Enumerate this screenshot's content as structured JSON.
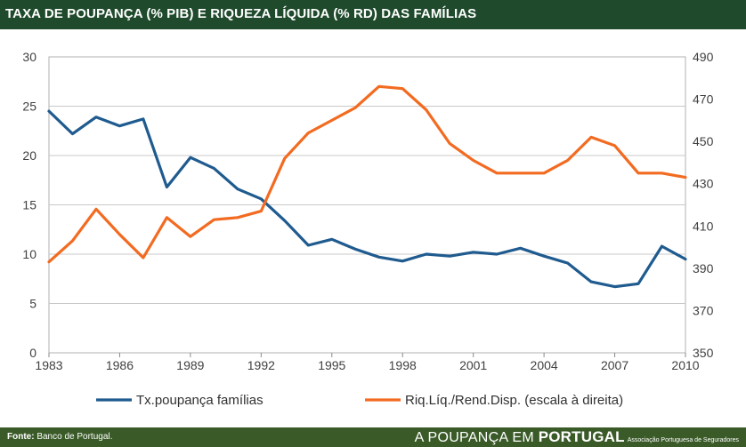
{
  "header": {
    "title": "TAXA DE POUPANÇA (% PIB) E RIQUEZA LÍQUIDA (% RD) DAS FAMÍLIAS"
  },
  "footer": {
    "source_label": "Fonte:",
    "source_text": "Banco de Portugal.",
    "brand_part1": "A POUPANÇA EM ",
    "brand_part2": "PORTUGAL",
    "brand_association": "Associação Portuguesa de Seguradores"
  },
  "colors": {
    "header_bg": "#1f4a2c",
    "footer_bg": "#3a5a28",
    "series_savings": "#1f5b8f",
    "series_wealth": "#f26b21"
  },
  "chart_data": {
    "type": "line",
    "title": "",
    "x": [
      1983,
      1984,
      1985,
      1986,
      1987,
      1988,
      1989,
      1990,
      1991,
      1992,
      1993,
      1994,
      1995,
      1996,
      1997,
      1998,
      1999,
      2000,
      2001,
      2002,
      2003,
      2004,
      2005,
      2006,
      2007,
      2008,
      2009,
      2010
    ],
    "xticks": [
      "1983",
      "1986",
      "1989",
      "1992",
      "1995",
      "1998",
      "2001",
      "2004",
      "2007",
      "2010"
    ],
    "xlim": [
      1983,
      2010
    ],
    "ylim_left": [
      0,
      30
    ],
    "yticks_left": [
      "0",
      "5",
      "10",
      "15",
      "20",
      "25",
      "30"
    ],
    "ylim_right": [
      350,
      490
    ],
    "yticks_right": [
      "350",
      "370",
      "390",
      "410",
      "430",
      "450",
      "470",
      "490"
    ],
    "grid": true,
    "legend": "bottom",
    "series": [
      {
        "name": "Tx.poupança famílias",
        "axis": "left",
        "color": "#1f5b8f",
        "values": [
          24.5,
          22.2,
          23.9,
          23.0,
          23.7,
          16.8,
          19.8,
          18.7,
          16.6,
          15.6,
          13.4,
          10.9,
          11.5,
          10.5,
          9.7,
          9.3,
          10.0,
          9.8,
          10.2,
          10.0,
          10.6,
          9.8,
          9.1,
          7.2,
          6.7,
          7.0,
          10.8,
          9.5
        ]
      },
      {
        "name": "Riq.Líq./Rend.Disp. (escala à direita)",
        "axis": "right",
        "color": "#f26b21",
        "values": [
          393,
          403,
          418,
          406,
          395,
          414,
          405,
          413,
          414,
          417,
          442,
          454,
          460,
          466,
          476,
          475,
          465,
          449,
          441,
          435,
          435,
          435,
          441,
          452,
          448,
          435,
          435,
          433
        ]
      }
    ]
  }
}
